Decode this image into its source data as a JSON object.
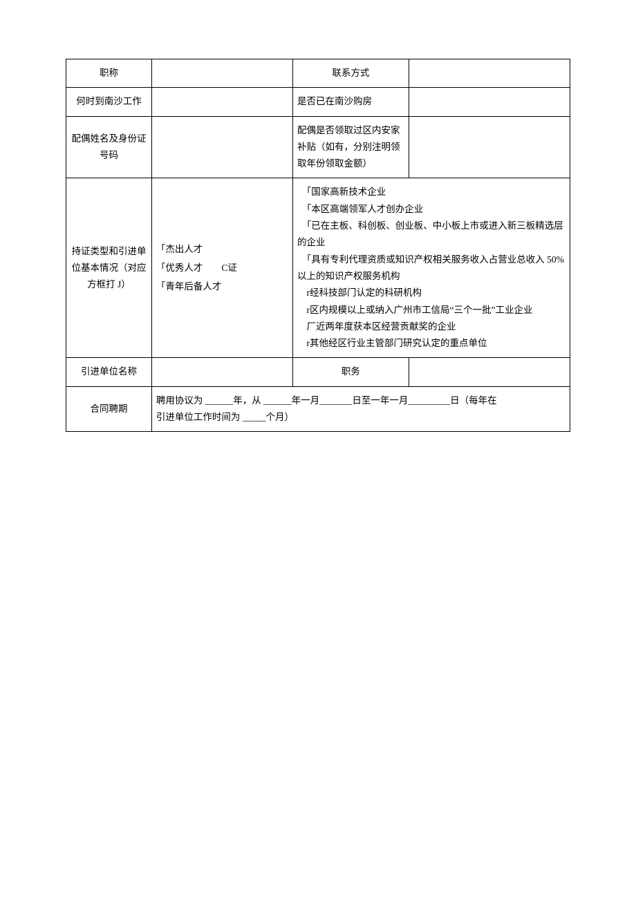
{
  "table": {
    "row1": {
      "label_left": "职称",
      "value_left": "",
      "label_right": "联系方式",
      "value_right": ""
    },
    "row2": {
      "label_left": "何时到南沙工作",
      "value_left": "",
      "label_right": "是否已在南沙购房",
      "value_right": ""
    },
    "row3": {
      "label_left": "配偶姓名及身份证号码",
      "value_left": "",
      "label_right": "配偶是否领取过区内安家补贴（如有，分别注明领取年份领取金额）",
      "value_right": ""
    },
    "row4": {
      "label_left": "持证类型和引进单位基本情况（对应方框打 J）",
      "options_left": "「杰出人才\n「优秀人才　　C证\n「青年后备人才",
      "options_right": "　「国家高新技术企业\n　「本区高端领军人才创办企业\n　「已在主板、科创板、创业板、中小板上市或进入新三板精选层的企业\n　「具有专利代理资质或知识产权相关服务收入占营业总收入 50%以上的知识产权服务机构\n　r经科技部门认定的科研机构\n　r区内规模以上或纳入广州市工信局“三个一批”工业企业\n　厂近两年度获本区经营贡献奖的企业\n　r其他经区行业主管部门研究认定的重点单位"
    },
    "row5": {
      "label_left": "引进单位名称",
      "value_left": "",
      "label_right": "职务",
      "value_right": ""
    },
    "row6": {
      "label_left": "合同聘期",
      "content": "聘用协议为 ______年，从 ______年一月_______日至一年一月_________日（每年在\n引进单位工作时间为 _____个月）"
    }
  },
  "colors": {
    "border": "#000000",
    "text": "#000000",
    "background": "#ffffff"
  },
  "fonts": {
    "body_size": 13.5,
    "line_height": 1.8
  }
}
